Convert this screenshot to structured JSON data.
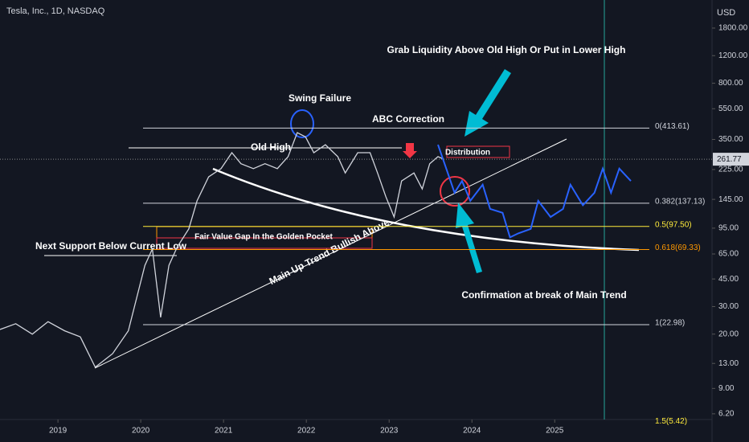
{
  "chart_data": {
    "type": "line",
    "title": "Tesla, Inc., 1D, NASDAQ",
    "currency": "USD",
    "log_scale": true,
    "xlim": [
      2018.3,
      2026.9
    ],
    "xticks": [
      2019,
      2020,
      2021,
      2022,
      2023,
      2024,
      2025
    ],
    "ylim": [
      5.7,
      2720
    ],
    "yticks": [
      {
        "value": 1800,
        "label": "1800.00"
      },
      {
        "value": 1200,
        "label": "1200.00"
      },
      {
        "value": 800,
        "label": "800.00"
      },
      {
        "value": 550,
        "label": "550.00"
      },
      {
        "value": 350,
        "label": "350.00"
      },
      {
        "value": 225,
        "label": "225.00"
      },
      {
        "value": 145,
        "label": "145.00"
      },
      {
        "value": 95,
        "label": "95.00"
      },
      {
        "value": 65,
        "label": "65.00"
      },
      {
        "value": 45,
        "label": "45.00"
      },
      {
        "value": 30,
        "label": "30.00"
      },
      {
        "value": 20,
        "label": "20.00"
      },
      {
        "value": 13,
        "label": "13.00"
      },
      {
        "value": 9,
        "label": "9.00"
      },
      {
        "value": 6.2,
        "label": "6.20"
      }
    ],
    "last_price": 261.77,
    "series": [
      {
        "color": "#d1d4dc",
        "x": [
          2018.3,
          2018.49,
          2018.69,
          2018.88,
          2019.08,
          2019.27,
          2019.45,
          2019.66,
          2019.85,
          2020.05,
          2020.14,
          2020.24,
          2020.34,
          2020.44,
          2020.58,
          2020.68,
          2020.82,
          2020.97,
          2021.1,
          2021.21,
          2021.36,
          2021.5,
          2021.65,
          2021.78,
          2021.89,
          2021.99,
          2022.09,
          2022.23,
          2022.38,
          2022.47,
          2022.62,
          2022.77,
          2022.86,
          2022.96,
          2023.06,
          2023.15,
          2023.3,
          2023.4,
          2023.49,
          2023.59,
          2023.66
        ],
        "values": [
          21.4,
          23.3,
          20,
          24,
          21,
          19.2,
          12.3,
          15,
          21,
          55,
          70,
          25.6,
          55,
          72,
          94,
          142,
          202,
          228,
          288,
          245,
          228,
          245,
          228,
          272,
          387,
          363,
          288,
          324,
          272,
          214,
          288,
          288,
          214,
          151,
          112,
          190,
          214,
          169,
          245,
          272,
          261.77
        ]
      },
      {
        "color": "#2962ff",
        "x": [
          2023.59,
          2023.69,
          2023.79,
          2023.88,
          2023.98,
          2024.13,
          2024.22,
          2024.37,
          2024.46,
          2024.56,
          2024.71,
          2024.8,
          2024.95,
          2025.1,
          2025.19,
          2025.34,
          2025.48,
          2025.58,
          2025.68,
          2025.78,
          2025.92
        ],
        "values": [
          324,
          228,
          160,
          190,
          142,
          180,
          126,
          119,
          83,
          88,
          94,
          142,
          112,
          126,
          180,
          133,
          160,
          228,
          160,
          228,
          190
        ]
      }
    ],
    "fib_levels": [
      {
        "value": 413.61,
        "label": "0(413.61)",
        "color": "#d1d4dc"
      },
      {
        "value": 137.13,
        "label": "0.382(137.13)",
        "color": "#d1d4dc"
      },
      {
        "value": 97.5,
        "label": "0.5(97.50)",
        "color": "#ffeb3b"
      },
      {
        "value": 69.33,
        "label": "0.618(69.33)",
        "color": "#ff9800"
      },
      {
        "value": 22.98,
        "label": "1(22.98)",
        "color": "#d1d4dc"
      },
      {
        "value": 5.42,
        "label": "1.5(5.42)",
        "color": "#ffeb3b"
      }
    ],
    "annotations": [
      "Grab Liquidity Above Old High Or Put in Lower High",
      "Swing Failure",
      "ABC Correction",
      "Old High",
      "Distribution",
      "Next Support Below Current Low",
      "Fair Value Gap In the Golden Pocket",
      "Main Up Trend Bullish Above",
      "Confirmation at break of Main Trend"
    ]
  }
}
